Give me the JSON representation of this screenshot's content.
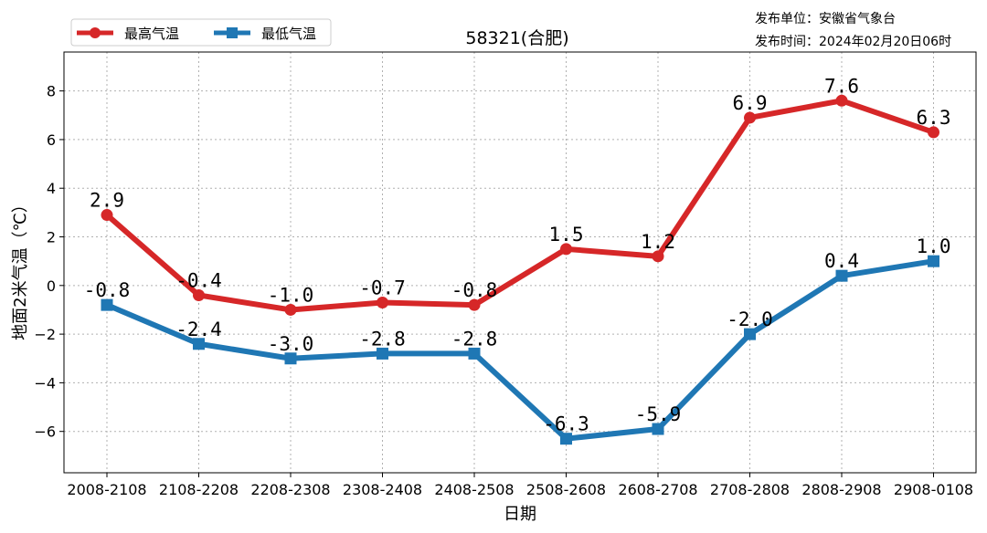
{
  "chart_data": {
    "type": "line",
    "title": "58321(合肥)",
    "publisher": "发布单位：安徽省气象台",
    "publish_time": "发布时间：2024年02月20日06时",
    "xlabel": "日期",
    "ylabel": "地面2米气温（℃）",
    "categories": [
      "2008-2108",
      "2108-2208",
      "2208-2308",
      "2308-2408",
      "2408-2508",
      "2508-2608",
      "2608-2708",
      "2708-2808",
      "2808-2908",
      "2908-0108"
    ],
    "series": [
      {
        "name": "最高气温",
        "color": "#d62728",
        "marker": "circle",
        "values": [
          2.9,
          -0.4,
          -1.0,
          -0.7,
          -0.8,
          1.5,
          1.2,
          6.9,
          7.6,
          6.3
        ],
        "labels": [
          "2.9",
          "-0.4",
          "-1.0",
          "-0.7",
          "-0.8",
          "1.5",
          "1.2",
          "6.9",
          "7.6",
          "6.3"
        ]
      },
      {
        "name": "最低气温",
        "color": "#1f77b4",
        "marker": "square",
        "values": [
          -0.8,
          -2.4,
          -3.0,
          -2.8,
          -2.8,
          -6.3,
          -5.9,
          -2.0,
          0.4,
          1.0
        ],
        "labels": [
          "-0.8",
          "-2.4",
          "-3.0",
          "-2.8",
          "-2.8",
          "-6.3",
          "-5.9",
          "-2.0",
          "0.4",
          "1.0"
        ]
      }
    ],
    "ylim": [
      -7.7,
      9.6
    ],
    "yticks": [
      -6,
      -4,
      -2,
      0,
      2,
      4,
      6,
      8
    ],
    "ytick_labels": [
      "−6",
      "−4",
      "−2",
      "0",
      "2",
      "4",
      "6",
      "8"
    ],
    "grid": true,
    "legend_position": "top-left"
  }
}
